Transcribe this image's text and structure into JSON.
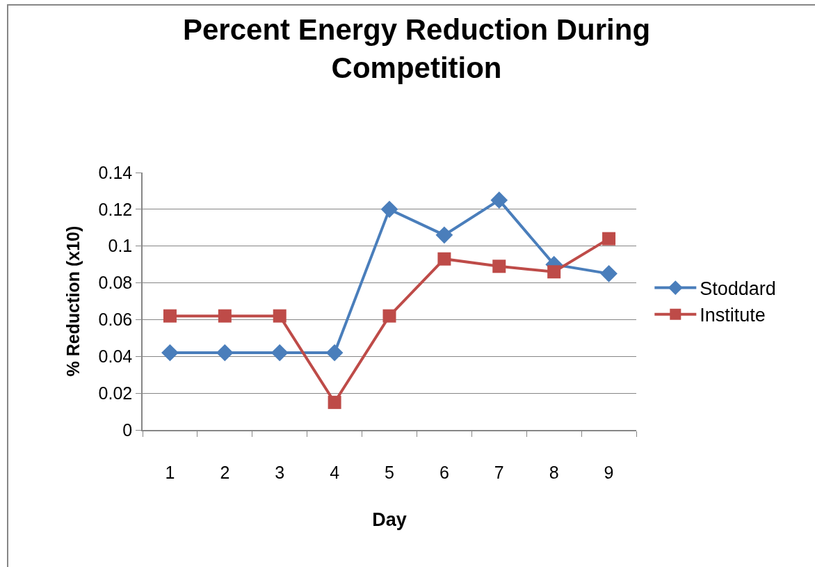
{
  "chart_data": {
    "type": "line",
    "title": "Percent Energy Reduction During\nCompetition",
    "xlabel": "Day",
    "ylabel": "% Reduction (x10)",
    "categories": [
      "1",
      "2",
      "3",
      "4",
      "5",
      "6",
      "7",
      "8",
      "9"
    ],
    "series": [
      {
        "name": "Stoddard",
        "color": "#4a7ebb",
        "marker": "diamond",
        "values": [
          0.042,
          0.042,
          0.042,
          0.042,
          0.12,
          0.106,
          0.125,
          0.09,
          0.085
        ]
      },
      {
        "name": "Institute",
        "color": "#be4b48",
        "marker": "square",
        "values": [
          0.062,
          0.062,
          0.062,
          0.015,
          0.062,
          0.093,
          0.089,
          0.086,
          0.104
        ]
      }
    ],
    "ylim": [
      0,
      0.14
    ],
    "yticks": [
      0,
      0.02,
      0.04,
      0.06,
      0.08,
      0.1,
      0.12,
      0.14
    ],
    "grid": "y",
    "legend": "right"
  }
}
